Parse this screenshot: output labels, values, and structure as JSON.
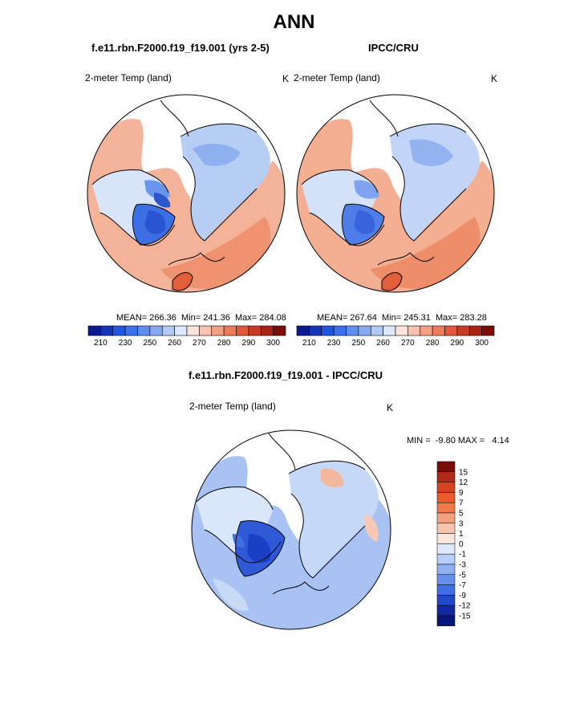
{
  "title": "ANN",
  "panels": [
    {
      "case_title": "f.e11.rbn.F2000.f19_f19.001 (yrs 2-5)",
      "variable": "2-meter Temp (land)",
      "units": "K",
      "stats": "MEAN= 266.36  Min= 241.36  Max= 284.08"
    },
    {
      "case_title": "IPCC/CRU",
      "variable": "2-meter Temp (land)",
      "units": "K",
      "stats": "MEAN= 267.64  Min= 245.31  Max= 283.28"
    }
  ],
  "difference": {
    "title": "f.e11.rbn.F2000.f19_f19.001 - IPCC/CRU",
    "variable": "2-meter Temp (land)",
    "units": "K",
    "stats": "MIN =  -9.80 MAX =   4.14"
  },
  "abs_colorbar": {
    "tick_labels": [
      "210",
      "230",
      "250",
      "260",
      "270",
      "280",
      "290",
      "300"
    ],
    "colors": [
      "#0a1a8c",
      "#1533b8",
      "#1f55e0",
      "#3a72ee",
      "#5e8ef0",
      "#86aaf2",
      "#b3c9f5",
      "#dce7fb",
      "#fbe3da",
      "#f7c2ae",
      "#f3a083",
      "#ee7c58",
      "#e3573a",
      "#c93a24",
      "#a82514",
      "#7a0d06"
    ]
  },
  "diff_colorbar": {
    "labels": [
      "15",
      "12",
      "9",
      "7",
      "5",
      "3",
      "1",
      "0",
      "-1",
      "-3",
      "-5",
      "-7",
      "-9",
      "-12",
      "-15"
    ],
    "colors": [
      "#7a0d06",
      "#b02a17",
      "#d8431f",
      "#ec5b2c",
      "#f07a4c",
      "#f3a07d",
      "#f7c4ad",
      "#fbe6de",
      "#dfe9fb",
      "#b9cef6",
      "#8fb1f1",
      "#6690ec",
      "#3f6fe6",
      "#2048c8",
      "#13289a",
      "#0a157a"
    ]
  }
}
